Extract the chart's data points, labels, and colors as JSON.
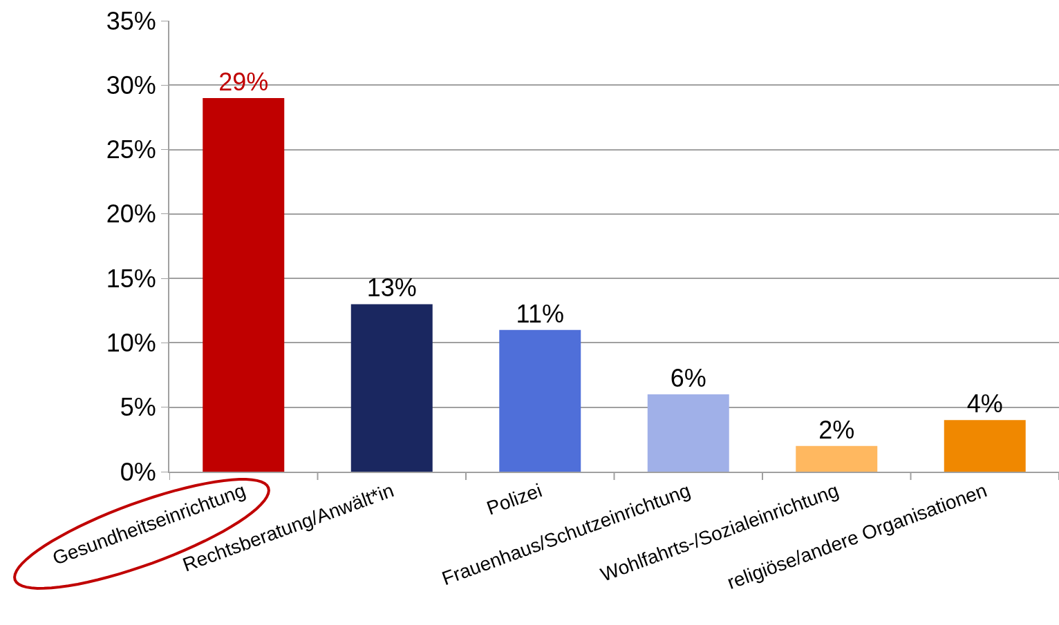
{
  "chart_data": {
    "type": "bar",
    "categories": [
      "Gesundheitseinrichtung",
      "Rechtsberatung/Anwält*in",
      "Polizei",
      "Frauenhaus/Schutzeinrichtung",
      "Wohlfahrts-/Sozialeinrichtung",
      "religiöse/andere Organisationen"
    ],
    "values": [
      29,
      13,
      11,
      6,
      2,
      4
    ],
    "colors": [
      "#c00000",
      "#1a2760",
      "#4f6fd9",
      "#a0b0e8",
      "#ffb860",
      "#f08800"
    ],
    "value_labels": [
      "29%",
      "13%",
      "11%",
      "6%",
      "2%",
      "4%"
    ],
    "ylim": [
      0,
      35
    ],
    "yticks": [
      {
        "value": 0,
        "label": "0%"
      },
      {
        "value": 5,
        "label": "5%"
      },
      {
        "value": 10,
        "label": "10%"
      },
      {
        "value": 15,
        "label": "15%"
      },
      {
        "value": 20,
        "label": "20%"
      },
      {
        "value": 25,
        "label": "25%"
      },
      {
        "value": 30,
        "label": "30%"
      },
      {
        "value": 35,
        "label": "35%"
      }
    ],
    "grid": "y",
    "legend": false
  }
}
